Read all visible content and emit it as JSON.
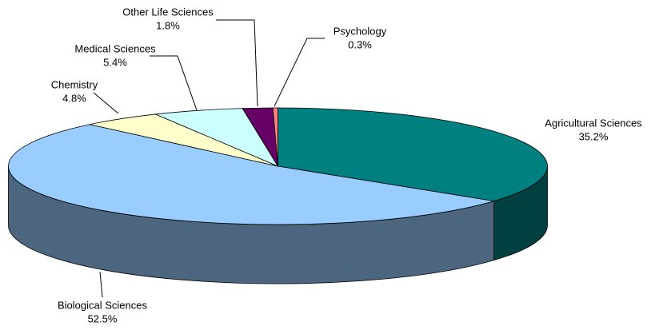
{
  "chart_data": {
    "type": "pie3d",
    "categories": [
      "Agricultural Sciences",
      "Biological Sciences",
      "Chemistry",
      "Medical Sciences",
      "Other Life Sciences",
      "Psychology"
    ],
    "values": [
      35.2,
      52.5,
      4.8,
      5.4,
      1.8,
      0.3
    ],
    "value_labels": [
      "35.2%",
      "52.5%",
      "4.8%",
      "5.4%",
      "1.8%",
      "0.3%"
    ],
    "colors": [
      "#008080",
      "#99ccff",
      "#ffffcc",
      "#ccffff",
      "#660066",
      "#ff8080"
    ]
  }
}
